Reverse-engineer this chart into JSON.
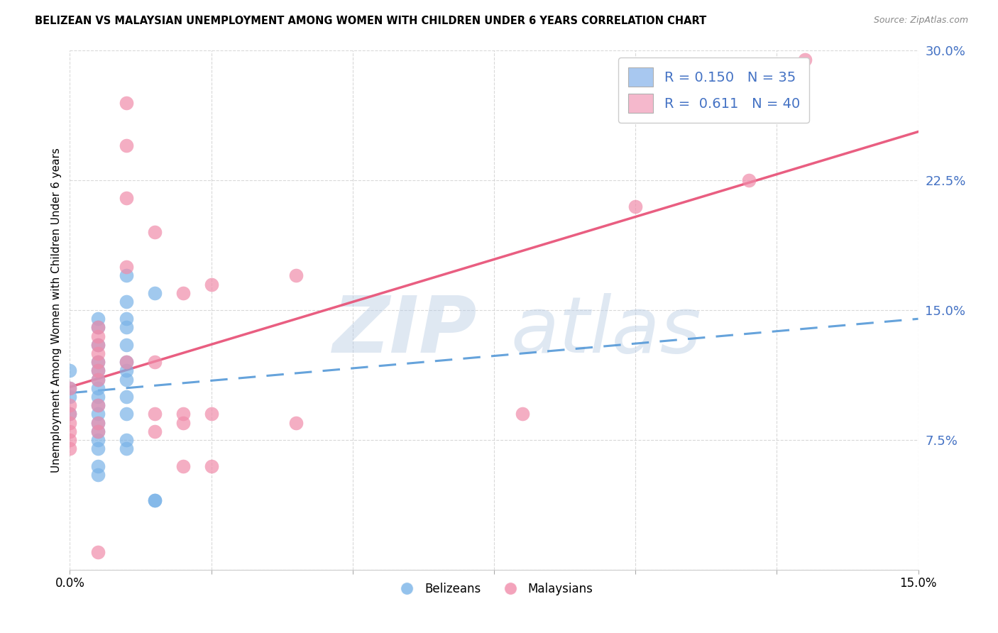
{
  "title": "BELIZEAN VS MALAYSIAN UNEMPLOYMENT AMONG WOMEN WITH CHILDREN UNDER 6 YEARS CORRELATION CHART",
  "source": "Source: ZipAtlas.com",
  "ylabel": "Unemployment Among Women with Children Under 6 years",
  "xlim": [
    0,
    0.15
  ],
  "ylim": [
    0,
    0.3
  ],
  "xticks": [
    0.0,
    0.025,
    0.05,
    0.075,
    0.1,
    0.125,
    0.15
  ],
  "xtick_labels": [
    "0.0%",
    "",
    "",
    "",
    "",
    "",
    "15.0%"
  ],
  "yticks": [
    0.0,
    0.075,
    0.15,
    0.225,
    0.3
  ],
  "ytick_labels": [
    "",
    "7.5%",
    "15.0%",
    "22.5%",
    "30.0%"
  ],
  "belizean_color": "#7ab3e8",
  "malaysian_color": "#f08caa",
  "trendline_belizean_color": "#5599d8",
  "trendline_malaysian_color": "#e8557a",
  "belizean_points": [
    [
      0.0,
      0.105
    ],
    [
      0.0,
      0.09
    ],
    [
      0.0,
      0.115
    ],
    [
      0.0,
      0.1
    ],
    [
      0.005,
      0.145
    ],
    [
      0.005,
      0.14
    ],
    [
      0.005,
      0.13
    ],
    [
      0.005,
      0.12
    ],
    [
      0.005,
      0.115
    ],
    [
      0.005,
      0.11
    ],
    [
      0.005,
      0.105
    ],
    [
      0.005,
      0.1
    ],
    [
      0.005,
      0.095
    ],
    [
      0.005,
      0.09
    ],
    [
      0.005,
      0.085
    ],
    [
      0.005,
      0.08
    ],
    [
      0.005,
      0.075
    ],
    [
      0.005,
      0.07
    ],
    [
      0.005,
      0.06
    ],
    [
      0.005,
      0.055
    ],
    [
      0.01,
      0.17
    ],
    [
      0.01,
      0.155
    ],
    [
      0.01,
      0.145
    ],
    [
      0.01,
      0.14
    ],
    [
      0.01,
      0.13
    ],
    [
      0.01,
      0.12
    ],
    [
      0.01,
      0.115
    ],
    [
      0.01,
      0.11
    ],
    [
      0.01,
      0.1
    ],
    [
      0.01,
      0.09
    ],
    [
      0.01,
      0.075
    ],
    [
      0.01,
      0.07
    ],
    [
      0.015,
      0.16
    ],
    [
      0.015,
      0.04
    ],
    [
      0.015,
      0.04
    ]
  ],
  "malaysian_points": [
    [
      0.0,
      0.105
    ],
    [
      0.0,
      0.095
    ],
    [
      0.0,
      0.09
    ],
    [
      0.0,
      0.085
    ],
    [
      0.0,
      0.08
    ],
    [
      0.0,
      0.075
    ],
    [
      0.0,
      0.07
    ],
    [
      0.005,
      0.14
    ],
    [
      0.005,
      0.135
    ],
    [
      0.005,
      0.13
    ],
    [
      0.005,
      0.125
    ],
    [
      0.005,
      0.12
    ],
    [
      0.005,
      0.115
    ],
    [
      0.005,
      0.11
    ],
    [
      0.005,
      0.095
    ],
    [
      0.005,
      0.085
    ],
    [
      0.005,
      0.08
    ],
    [
      0.01,
      0.27
    ],
    [
      0.01,
      0.245
    ],
    [
      0.01,
      0.215
    ],
    [
      0.01,
      0.175
    ],
    [
      0.01,
      0.12
    ],
    [
      0.015,
      0.195
    ],
    [
      0.015,
      0.12
    ],
    [
      0.015,
      0.09
    ],
    [
      0.015,
      0.08
    ],
    [
      0.02,
      0.16
    ],
    [
      0.02,
      0.09
    ],
    [
      0.02,
      0.085
    ],
    [
      0.025,
      0.165
    ],
    [
      0.025,
      0.09
    ],
    [
      0.04,
      0.17
    ],
    [
      0.04,
      0.085
    ],
    [
      0.08,
      0.09
    ],
    [
      0.1,
      0.21
    ],
    [
      0.12,
      0.225
    ],
    [
      0.13,
      0.295
    ],
    [
      0.005,
      0.01
    ],
    [
      0.02,
      0.06
    ],
    [
      0.025,
      0.06
    ]
  ]
}
